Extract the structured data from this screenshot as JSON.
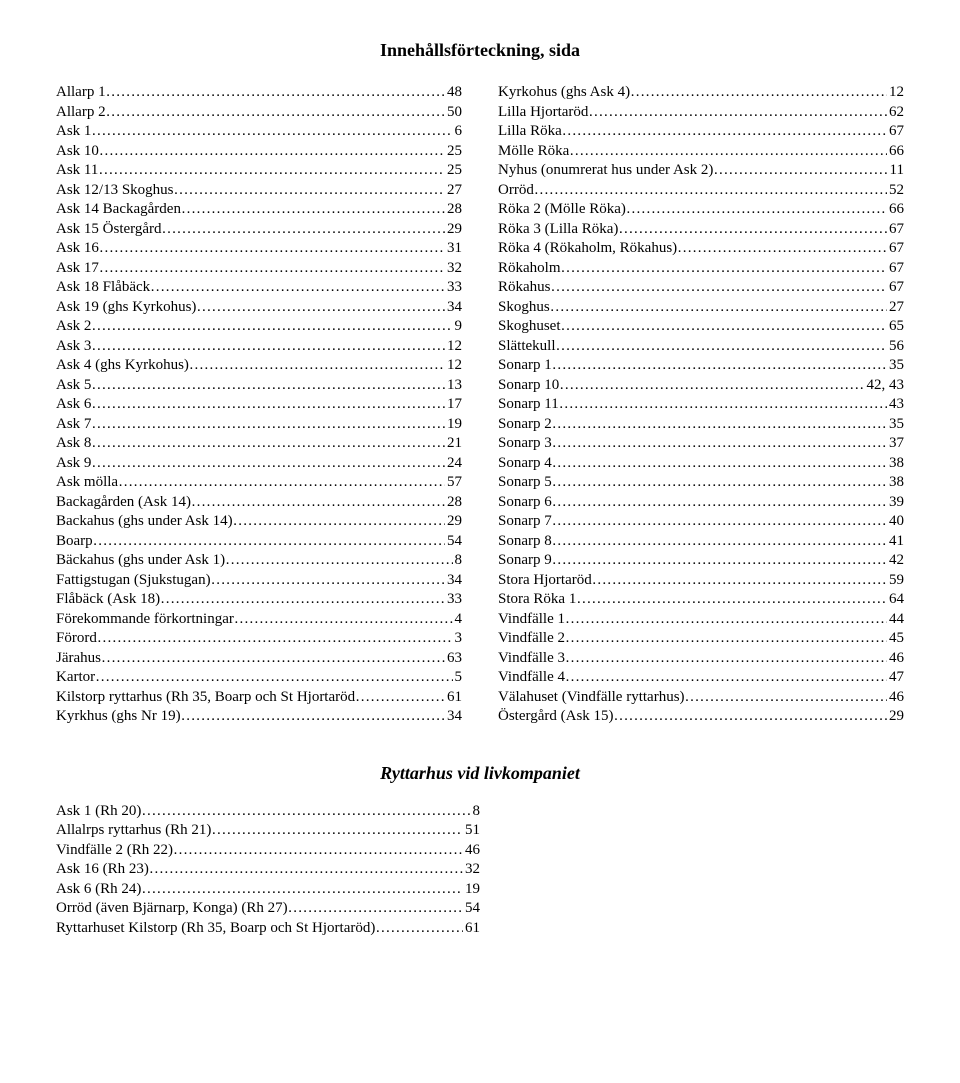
{
  "title": "Innehållsförteckning, sida",
  "subtitle": "Ryttarhus vid livkompaniet",
  "font": {
    "family": "Times New Roman",
    "body_size_pt": 11,
    "title_size_pt": 14
  },
  "colors": {
    "text": "#000000",
    "background": "#ffffff"
  },
  "left": [
    {
      "label": "Allarp 1",
      "page": "48"
    },
    {
      "label": "Allarp 2",
      "page": "50"
    },
    {
      "label": "Ask 1",
      "page": "6"
    },
    {
      "label": "Ask 10",
      "page": "25"
    },
    {
      "label": "Ask 11",
      "page": "25"
    },
    {
      "label": "Ask 12/13 Skoghus",
      "page": "27"
    },
    {
      "label": "Ask 14 Backagården",
      "page": "28"
    },
    {
      "label": "Ask 15 Östergård",
      "page": "29"
    },
    {
      "label": "Ask 16",
      "page": "31"
    },
    {
      "label": "Ask 17",
      "page": "32"
    },
    {
      "label": "Ask 18 Flåbäck",
      "page": "33"
    },
    {
      "label": "Ask  19 (ghs Kyrkohus)",
      "page": "34"
    },
    {
      "label": "Ask 2",
      "page": "9"
    },
    {
      "label": "Ask 3",
      "page": "12"
    },
    {
      "label": "Ask 4 (ghs Kyrkohus)",
      "page": "12"
    },
    {
      "label": "Ask 5",
      "page": "13"
    },
    {
      "label": "Ask 6",
      "page": "17"
    },
    {
      "label": "Ask 7",
      "page": "19"
    },
    {
      "label": "Ask 8",
      "page": "21"
    },
    {
      "label": "Ask 9",
      "page": "24"
    },
    {
      "label": "Ask mölla",
      "page": "57"
    },
    {
      "label": "Backagården (Ask 14)",
      "page": "28"
    },
    {
      "label": "Backahus (ghs under Ask 14)",
      "page": "29"
    },
    {
      "label": "Boarp",
      "page": "54"
    },
    {
      "label": "Bäckahus (ghs under Ask 1)",
      "page": "8"
    },
    {
      "label": "Fattigstugan (Sjukstugan)",
      "page": "34"
    },
    {
      "label": "Flåbäck (Ask 18)",
      "page": "33"
    },
    {
      "label": "Förekommande förkortningar",
      "page": "4"
    },
    {
      "label": "Förord",
      "page": "3"
    },
    {
      "label": "Järahus",
      "page": "63"
    },
    {
      "label": "Kartor",
      "page": "5"
    },
    {
      "label": "Kilstorp ryttarhus (Rh 35, Boarp och St Hjortaröd",
      "page": "61"
    },
    {
      "label": "Kyrkhus (ghs Nr 19)",
      "page": "34"
    }
  ],
  "right": [
    {
      "label": "Kyrkohus (ghs Ask 4)",
      "page": "12"
    },
    {
      "label": "Lilla Hjortaröd",
      "page": "62"
    },
    {
      "label": "Lilla Röka",
      "page": "67"
    },
    {
      "label": "Mölle Röka",
      "page": "66"
    },
    {
      "label": "Nyhus (onumrerat hus under Ask 2)",
      "page": "11"
    },
    {
      "label": "Orröd",
      "page": "52"
    },
    {
      "label": "Röka 2 (Mölle Röka)",
      "page": "66"
    },
    {
      "label": "Röka 3 (Lilla Röka)",
      "page": "67"
    },
    {
      "label": "Röka 4 (Rökaholm, Rökahus)",
      "page": "67"
    },
    {
      "label": "Rökaholm",
      "page": "67"
    },
    {
      "label": "Rökahus",
      "page": "67"
    },
    {
      "label": "Skoghus",
      "page": "27"
    },
    {
      "label": "Skoghuset",
      "page": "65"
    },
    {
      "label": "Slättekull",
      "page": "56"
    },
    {
      "label": "Sonarp 1",
      "page": "35"
    },
    {
      "label": "Sonarp 10",
      "page": "42, 43"
    },
    {
      "label": "Sonarp 11",
      "page": "43"
    },
    {
      "label": "Sonarp 2",
      "page": "35"
    },
    {
      "label": "Sonarp 3",
      "page": "37"
    },
    {
      "label": "Sonarp 4",
      "page": "38"
    },
    {
      "label": "Sonarp 5",
      "page": "38"
    },
    {
      "label": "Sonarp 6",
      "page": "39"
    },
    {
      "label": "Sonarp 7",
      "page": "40"
    },
    {
      "label": "Sonarp 8",
      "page": "41"
    },
    {
      "label": "Sonarp 9",
      "page": "42"
    },
    {
      "label": "Stora Hjortaröd",
      "page": "59"
    },
    {
      "label": "Stora Röka 1",
      "page": "64"
    },
    {
      "label": "Vindfälle 1",
      "page": "44"
    },
    {
      "label": "Vindfälle 2",
      "page": "45"
    },
    {
      "label": "Vindfälle 3",
      "page": "46"
    },
    {
      "label": "Vindfälle 4",
      "page": "47"
    },
    {
      "label": "Välahuset (Vindfälle ryttarhus)",
      "page": "46"
    },
    {
      "label": "Östergård (Ask 15)",
      "page": "29"
    }
  ],
  "bottom": [
    {
      "label": "Ask 1 (Rh 20)",
      "page": "8"
    },
    {
      "label": "Allalrps ryttarhus (Rh 21)",
      "page": "51"
    },
    {
      "label": "Vindfälle 2 (Rh 22)",
      "page": "46"
    },
    {
      "label": "Ask 16 (Rh 23)",
      "page": "32"
    },
    {
      "label": "Ask 6 (Rh 24)",
      "page": "19"
    },
    {
      "label": "Orröd (även Bjärnarp, Konga) (Rh 27)",
      "page": "54"
    },
    {
      "label": "Ryttarhuset Kilstorp (Rh 35, Boarp och St Hjortaröd)",
      "page": "61"
    }
  ]
}
